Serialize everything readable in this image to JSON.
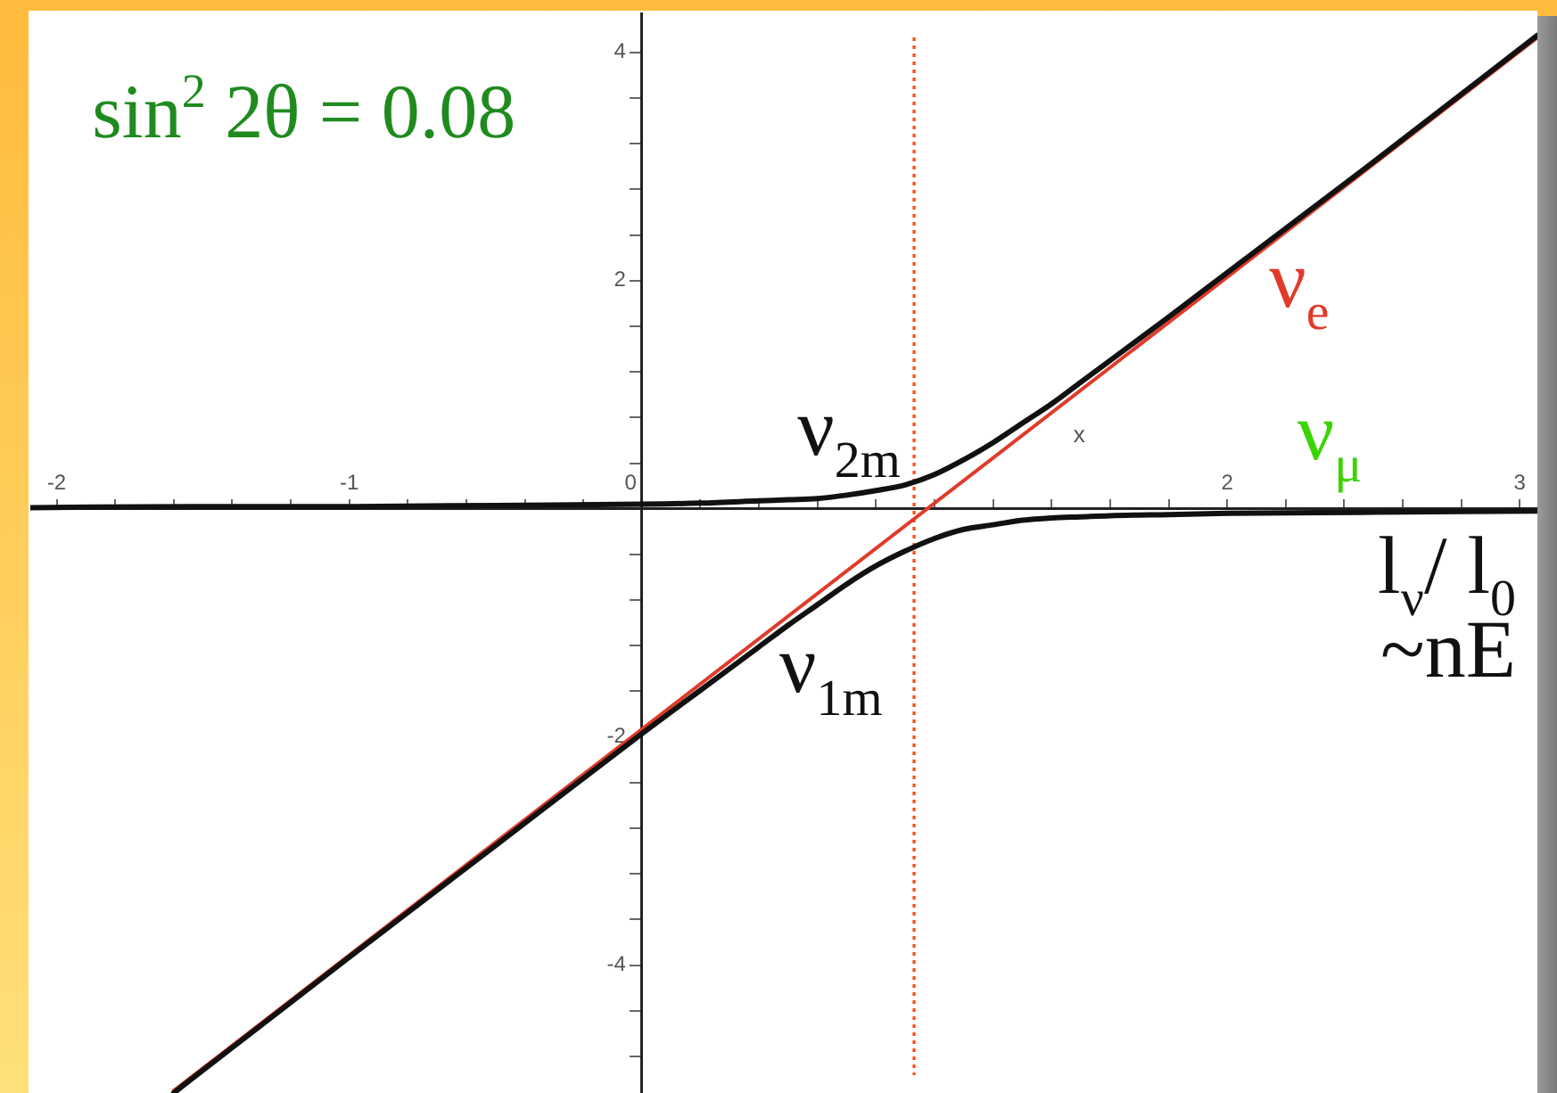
{
  "chart_data": {
    "type": "line",
    "xlabel": "l$_{ν}$/ l$_{0}$\n~nE",
    "annotations": [
      "sin$^{2}$ 2θ = 0.08",
      "x",
      {
        "text": "ν$_{μ}$",
        "x": 2.35,
        "y": 0
      }
    ],
    "series": [
      {
        "name": "ν$_{2m}$",
        "color": "#111111",
        "x": [
          -2.09,
          -1.5,
          -1,
          -0.5,
          0,
          0.2,
          0.4,
          0.5,
          0.6,
          0.7,
          0.8,
          0.9,
          1,
          1.1,
          1.2,
          1.3,
          1.4,
          1.5,
          1.6,
          1.8,
          2,
          2.5,
          3.06
        ],
        "values": [
          0.01,
          0.02,
          0.02,
          0.03,
          0.04,
          0.05,
          0.07,
          0.08,
          0.09,
          0.12,
          0.16,
          0.21,
          0.3,
          0.43,
          0.58,
          0.75,
          0.92,
          1.11,
          1.3,
          1.68,
          2.07,
          3.04,
          4.15
        ]
      },
      {
        "name": "ν$_{1m}$",
        "color": "#111111",
        "x": [
          -1.6,
          -1.5,
          -1,
          -0.5,
          0,
          0.2,
          0.4,
          0.5,
          0.6,
          0.7,
          0.8,
          0.9,
          1,
          1.1,
          1.2,
          1.3,
          1.4,
          1.5,
          1.6,
          1.8,
          2,
          2.5,
          3.06
        ],
        "values": [
          -5.12,
          -4.92,
          -3.93,
          -2.95,
          -1.97,
          -1.59,
          -1.21,
          -1.02,
          -0.84,
          -0.66,
          -0.5,
          -0.37,
          -0.26,
          -0.18,
          -0.14,
          -0.1,
          -0.08,
          -0.07,
          -0.06,
          -0.05,
          -0.04,
          -0.03,
          -0.02
        ]
      },
      {
        "name": "ν$_{e}$",
        "color": "#e03a2a",
        "x": [
          -1.6,
          3.06
        ],
        "values": [
          -5.1,
          4.13
        ]
      }
    ],
    "xlim": [
      -2.09,
      3.06
    ],
    "ylim": [
      -5.12,
      4.35
    ],
    "xticks": [
      -2,
      {
        "value": -1.8,
        "label": null
      },
      {
        "value": -1.6,
        "label": null
      },
      {
        "value": -1.4,
        "label": null
      },
      {
        "value": -1.2,
        "label": null
      },
      -1,
      {
        "value": -0.8,
        "label": null
      },
      {
        "value": -0.6,
        "label": null
      },
      {
        "value": -0.4,
        "label": null
      },
      {
        "value": -0.2,
        "label": null
      },
      0,
      {
        "value": 0.2,
        "label": null
      },
      {
        "value": 0.4,
        "label": null
      },
      {
        "value": 0.6,
        "label": null
      },
      {
        "value": 0.8,
        "label": null
      },
      {
        "value": 1,
        "label": null
      },
      {
        "value": 1.2,
        "label": null
      },
      {
        "value": 1.4,
        "label": null
      },
      {
        "value": 1.6,
        "label": null
      },
      {
        "value": 1.8,
        "label": null
      },
      2,
      {
        "value": 2.2,
        "label": null
      },
      {
        "value": 2.4,
        "label": null
      },
      {
        "value": 2.6,
        "label": null
      },
      {
        "value": 2.8,
        "label": null
      },
      3
    ],
    "yticks": [
      4,
      {
        "value": 3.6,
        "label": null
      },
      {
        "value": 3.2,
        "label": null
      },
      {
        "value": 2.8,
        "label": null
      },
      {
        "value": 2.4,
        "label": null
      },
      2,
      {
        "value": 1.6,
        "label": null
      },
      {
        "value": 1.2,
        "label": null
      },
      {
        "value": 0.8,
        "label": null
      },
      {
        "value": 0.4,
        "label": null
      },
      {
        "value": 0,
        "label": null
      },
      {
        "value": -0.4,
        "label": null
      },
      {
        "value": -0.8,
        "label": null
      },
      {
        "value": -1.2,
        "label": null
      },
      {
        "value": -1.6,
        "label": null
      },
      -2,
      {
        "value": -2.4,
        "label": null
      },
      {
        "value": -2.8,
        "label": null
      },
      {
        "value": -3.2,
        "label": null
      },
      {
        "value": -3.6,
        "label": null
      },
      -4,
      {
        "value": -4.4,
        "label": null
      },
      {
        "value": -4.8,
        "label": null
      }
    ],
    "ref_lines": [
      {
        "axis": "x",
        "value": 0.93,
        "color": "#ff4a10",
        "line_style": "dotted"
      }
    ]
  }
}
